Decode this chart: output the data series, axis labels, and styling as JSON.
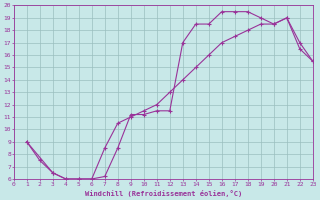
{
  "xlabel": "Windchill (Refroidissement éolien,°C)",
  "line1_x": [
    1,
    2,
    3,
    4,
    5,
    6,
    7,
    8,
    9,
    10,
    11,
    12,
    13,
    14,
    15,
    16,
    17,
    18,
    19,
    20,
    21,
    22,
    23
  ],
  "line1_y": [
    9.0,
    7.5,
    6.5,
    6.0,
    6.0,
    6.0,
    6.2,
    8.5,
    11.2,
    11.2,
    11.5,
    11.5,
    17.0,
    18.5,
    18.5,
    19.5,
    19.5,
    19.5,
    19.0,
    18.5,
    19.0,
    16.5,
    15.5
  ],
  "line2_x": [
    1,
    3,
    4,
    5,
    6,
    7,
    8,
    9,
    10,
    11,
    12,
    13,
    14,
    15,
    16,
    17,
    18,
    19,
    20,
    21,
    22,
    23
  ],
  "line2_y": [
    9.0,
    6.5,
    6.0,
    6.0,
    6.0,
    8.5,
    10.5,
    11.0,
    11.5,
    12.0,
    13.0,
    14.0,
    15.0,
    16.0,
    17.0,
    17.5,
    18.0,
    18.5,
    18.5,
    19.0,
    17.0,
    15.5
  ],
  "color": "#993399",
  "bg_color": "#c8e8e8",
  "grid_color": "#9bbfbf",
  "xlim": [
    0,
    23
  ],
  "ylim": [
    6,
    20
  ],
  "xticks": [
    0,
    1,
    2,
    3,
    4,
    5,
    6,
    7,
    8,
    9,
    10,
    11,
    12,
    13,
    14,
    15,
    16,
    17,
    18,
    19,
    20,
    21,
    22,
    23
  ],
  "yticks": [
    6,
    7,
    8,
    9,
    10,
    11,
    12,
    13,
    14,
    15,
    16,
    17,
    18,
    19,
    20
  ],
  "marker_size": 3.5,
  "linewidth": 0.8
}
